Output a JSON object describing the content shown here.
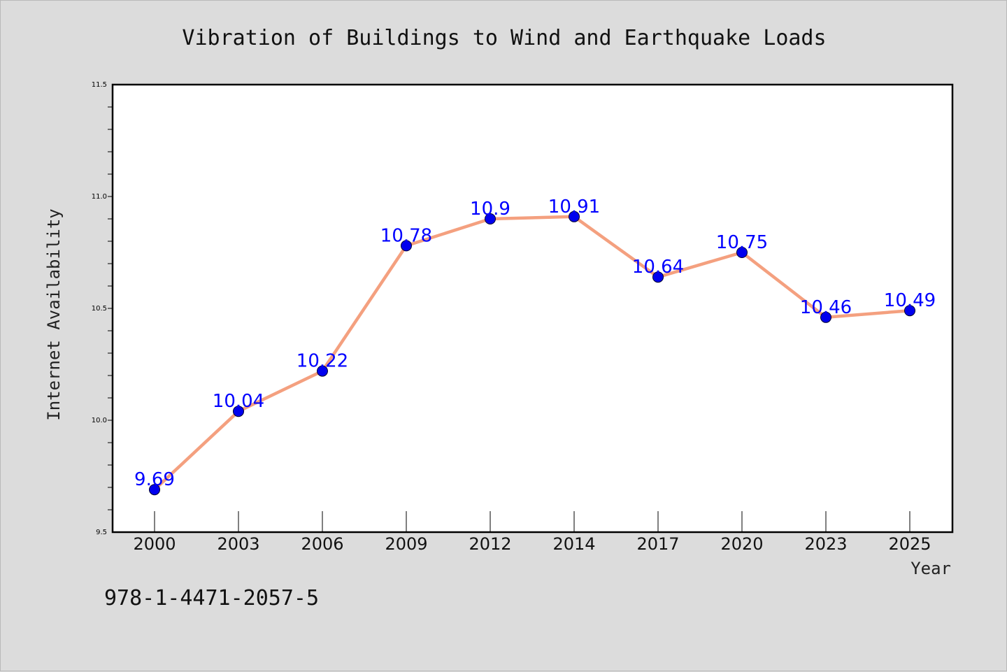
{
  "chart_data": {
    "type": "line",
    "title": "Vibration of Buildings to Wind and Earthquake Loads",
    "xlabel": "Year",
    "ylabel": "Internet Availability",
    "categories": [
      "2000",
      "2003",
      "2006",
      "2009",
      "2012",
      "2014",
      "2017",
      "2020",
      "2023",
      "2025"
    ],
    "values": [
      9.69,
      10.04,
      10.22,
      10.78,
      10.9,
      10.91,
      10.64,
      10.75,
      10.46,
      10.49
    ],
    "data_labels": [
      "9.69",
      "10.04",
      "10.22",
      "10.78",
      "10.9",
      "10.91",
      "10.64",
      "10.75",
      "10.46",
      "10.49"
    ],
    "ylim": [
      9.5,
      11.5
    ],
    "yticks": [
      "9.5",
      "10.0",
      "10.5",
      "11.0",
      "11.5"
    ],
    "grid": false,
    "line_color": "#f4a07f",
    "marker_color": "#0000ee",
    "label_color": "#0000ff",
    "annotation": "978-1-4471-2057-5"
  }
}
